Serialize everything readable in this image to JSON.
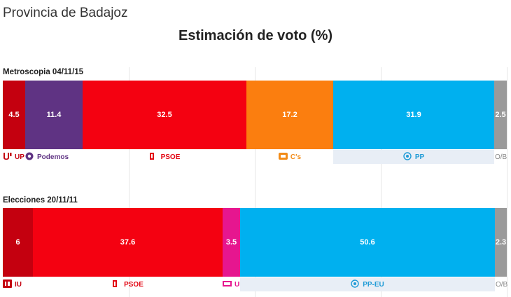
{
  "header": {
    "province": "Provincia de Badajoz",
    "title": "Estimación de voto (%)"
  },
  "chart_data": [
    {
      "type": "bar",
      "orientation": "horizontal-stacked",
      "label": "Metroscopia 04/11/15",
      "xlim": [
        0,
        100
      ],
      "series": [
        {
          "name": "UP",
          "value": 4.5,
          "label": "4.5",
          "color": "#c4000f",
          "legend_color": "#c4000f",
          "icon": "up-logo-icon"
        },
        {
          "name": "Podemos",
          "value": 11.4,
          "label": "11.4",
          "color": "#5f3383",
          "legend_color": "#5f3383",
          "icon": "podemos-logo-icon"
        },
        {
          "name": "PSOE",
          "value": 32.5,
          "label": "32.5",
          "color": "#f40111",
          "legend_color": "#e30613",
          "icon": "psoe-logo-icon"
        },
        {
          "name": "C's",
          "value": 17.2,
          "label": "17.2",
          "color": "#fb7e0f",
          "legend_color": "#f28b17",
          "icon": "cs-logo-icon"
        },
        {
          "name": "PP",
          "value": 31.9,
          "label": "31.9",
          "color": "#00b0ef",
          "legend_color": "#1f9bd6",
          "icon": "pp-logo-icon"
        },
        {
          "name": "O/B",
          "value": 2.5,
          "label": "2.5",
          "color": "#9a9a9a",
          "legend_color": "#888888",
          "icon": ""
        }
      ]
    },
    {
      "type": "bar",
      "orientation": "horizontal-stacked",
      "label": "Elecciones 20/11/11",
      "xlim": [
        0,
        100
      ],
      "series": [
        {
          "name": "IU",
          "value": 6,
          "label": "6",
          "color": "#c4000f",
          "legend_color": "#c4000f",
          "icon": "iu-logo-icon"
        },
        {
          "name": "PSOE",
          "value": 37.6,
          "label": "37.6",
          "color": "#f40111",
          "legend_color": "#e30613",
          "icon": "psoe-logo-icon"
        },
        {
          "name": "UPyD",
          "value": 3.5,
          "label": "3.5",
          "color": "#e6168f",
          "legend_color": "#e6168f",
          "icon": "upyd-logo-icon"
        },
        {
          "name": "PP-EU",
          "value": 50.6,
          "label": "50.6",
          "color": "#00b0ef",
          "legend_color": "#1f9bd6",
          "icon": "pp-logo-icon"
        },
        {
          "name": "O/B",
          "value": 2.3,
          "label": "2.3",
          "color": "#9a9a9a",
          "legend_color": "#888888",
          "icon": ""
        }
      ]
    }
  ]
}
